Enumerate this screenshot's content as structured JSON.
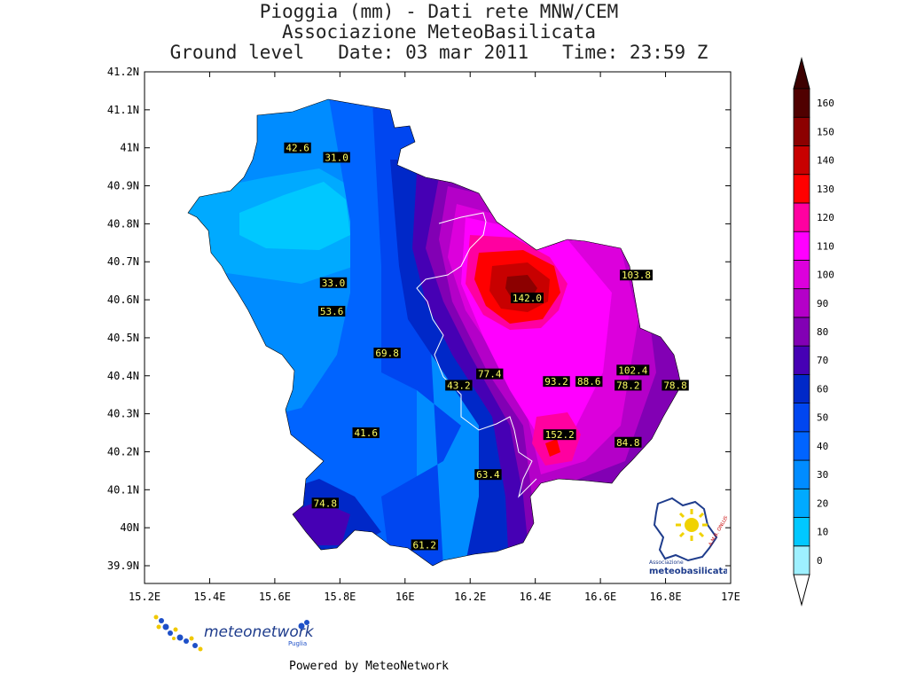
{
  "title": {
    "line1": "Pioggia (mm) - Dati rete MNW/CEM",
    "line2": "Associazione MeteoBasilicata",
    "line3": "Ground level   Date: 03 mar 2011   Time: 23:59 Z"
  },
  "chart_data": {
    "type": "heatmap",
    "xlim": [
      15.2,
      17.0
    ],
    "ylim": [
      39.85,
      41.2
    ],
    "x_ticks": [
      {
        "value": 15.2,
        "label": "15.2E"
      },
      {
        "value": 15.4,
        "label": "15.4E"
      },
      {
        "value": 15.6,
        "label": "15.6E"
      },
      {
        "value": 15.8,
        "label": "15.8E"
      },
      {
        "value": 16.0,
        "label": "16E"
      },
      {
        "value": 16.2,
        "label": "16.2E"
      },
      {
        "value": 16.4,
        "label": "16.4E"
      },
      {
        "value": 16.6,
        "label": "16.6E"
      },
      {
        "value": 16.8,
        "label": "16.8E"
      },
      {
        "value": 17.0,
        "label": "17E"
      }
    ],
    "y_ticks": [
      {
        "value": 41.2,
        "label": "41.2N"
      },
      {
        "value": 41.1,
        "label": "41.1N"
      },
      {
        "value": 41.0,
        "label": "41N"
      },
      {
        "value": 40.9,
        "label": "40.9N"
      },
      {
        "value": 40.8,
        "label": "40.8N"
      },
      {
        "value": 40.7,
        "label": "40.7N"
      },
      {
        "value": 40.6,
        "label": "40.6N"
      },
      {
        "value": 40.5,
        "label": "40.5N"
      },
      {
        "value": 40.4,
        "label": "40.4N"
      },
      {
        "value": 40.3,
        "label": "40.3N"
      },
      {
        "value": 40.2,
        "label": "40.2N"
      },
      {
        "value": 40.1,
        "label": "40.1N"
      },
      {
        "value": 40.0,
        "label": "40N"
      },
      {
        "value": 39.9,
        "label": "39.9N"
      }
    ],
    "stations": [
      {
        "lon": 15.67,
        "lat": 41.0,
        "value": "42.6"
      },
      {
        "lon": 15.79,
        "lat": 40.975,
        "value": "31.0"
      },
      {
        "lon": 15.78,
        "lat": 40.645,
        "value": "33.0"
      },
      {
        "lon": 15.775,
        "lat": 40.57,
        "value": "53.6"
      },
      {
        "lon": 15.945,
        "lat": 40.46,
        "value": "69.8"
      },
      {
        "lon": 16.165,
        "lat": 40.375,
        "value": "43.2"
      },
      {
        "lon": 16.26,
        "lat": 40.405,
        "value": "77.4"
      },
      {
        "lon": 16.375,
        "lat": 40.605,
        "value": "142.0"
      },
      {
        "lon": 16.71,
        "lat": 40.665,
        "value": "103.8"
      },
      {
        "lon": 16.7,
        "lat": 40.415,
        "value": "102.4"
      },
      {
        "lon": 16.465,
        "lat": 40.385,
        "value": "93.2"
      },
      {
        "lon": 16.565,
        "lat": 40.385,
        "value": "88.6"
      },
      {
        "lon": 16.685,
        "lat": 40.375,
        "value": "78.2"
      },
      {
        "lon": 16.83,
        "lat": 40.375,
        "value": "78.8"
      },
      {
        "lon": 16.475,
        "lat": 40.245,
        "value": "152.2"
      },
      {
        "lon": 16.685,
        "lat": 40.225,
        "value": "84.8"
      },
      {
        "lon": 15.88,
        "lat": 40.25,
        "value": "41.6"
      },
      {
        "lon": 16.255,
        "lat": 40.14,
        "value": "63.4"
      },
      {
        "lon": 15.755,
        "lat": 40.065,
        "value": "74.8"
      },
      {
        "lon": 16.06,
        "lat": 39.955,
        "value": "61.2"
      }
    ],
    "legend": {
      "placement": "right",
      "levels": [
        {
          "label": "0",
          "color": "#9ef0ff"
        },
        {
          "label": "10",
          "color": "#00c8ff"
        },
        {
          "label": "20",
          "color": "#00aaff"
        },
        {
          "label": "30",
          "color": "#008cff"
        },
        {
          "label": "40",
          "color": "#0064ff"
        },
        {
          "label": "50",
          "color": "#0046f0"
        },
        {
          "label": "60",
          "color": "#0028c8"
        },
        {
          "label": "70",
          "color": "#4600b4"
        },
        {
          "label": "80",
          "color": "#8200b4"
        },
        {
          "label": "90",
          "color": "#b400c8"
        },
        {
          "label": "100",
          "color": "#dc00dc"
        },
        {
          "label": "110",
          "color": "#ff00ff"
        },
        {
          "label": "120",
          "color": "#ff00a0"
        },
        {
          "label": "130",
          "color": "#ff0000"
        },
        {
          "label": "140",
          "color": "#c80000"
        },
        {
          "label": "150",
          "color": "#8c0000"
        },
        {
          "label": "160",
          "color": "#500000"
        }
      ],
      "under_color": "#ffffff",
      "over_color": "#3c0000"
    }
  },
  "logos": {
    "meteonetwork": {
      "name": "meteonetwork",
      "sub": "Puglia"
    },
    "meteobasilicata": {
      "top": "Associazione",
      "name": "meteobasilicata",
      "badge": "A.M.B. ONLUS"
    }
  },
  "footer": "Powered by MeteoNetwork"
}
